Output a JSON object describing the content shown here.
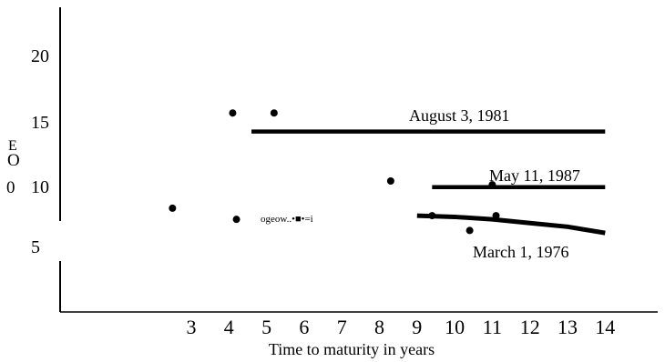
{
  "chart_data": {
    "type": "line",
    "xlabel": "Time to maturity in years",
    "ylabel": "E O 0",
    "x_ticks": [
      "3",
      "4",
      "5",
      "6",
      "7",
      "8",
      "9",
      "10",
      "11",
      "12",
      "13",
      "14"
    ],
    "y_ticks": [
      "5",
      "10",
      "15",
      "20"
    ],
    "xlim": [
      2.5,
      14.5
    ],
    "ylim": [
      0,
      23
    ],
    "series": [
      {
        "name": "August 3, 1981",
        "points": [
          [
            4.6,
            14.0
          ],
          [
            14.0,
            14.0
          ]
        ],
        "scatter": [
          [
            4.1,
            15.5
          ],
          [
            5.2,
            15.5
          ]
        ]
      },
      {
        "name": "May 11, 1987",
        "points": [
          [
            9.4,
            9.5
          ],
          [
            14.0,
            9.5
          ]
        ],
        "scatter": [
          [
            8.3,
            10.0
          ],
          [
            11.0,
            9.7
          ]
        ]
      },
      {
        "name": "March 1, 1976",
        "points": [
          [
            9.0,
            7.2
          ],
          [
            10.0,
            7.1
          ],
          [
            11.0,
            6.9
          ],
          [
            12.0,
            6.6
          ],
          [
            13.0,
            6.3
          ],
          [
            14.0,
            5.8
          ]
        ],
        "scatter": [
          [
            2.5,
            7.8
          ],
          [
            4.2,
            6.9
          ],
          [
            9.4,
            7.2
          ],
          [
            10.4,
            6.0
          ],
          [
            11.1,
            7.2
          ]
        ]
      }
    ],
    "stray_text": "ogeow..•■•=i"
  }
}
